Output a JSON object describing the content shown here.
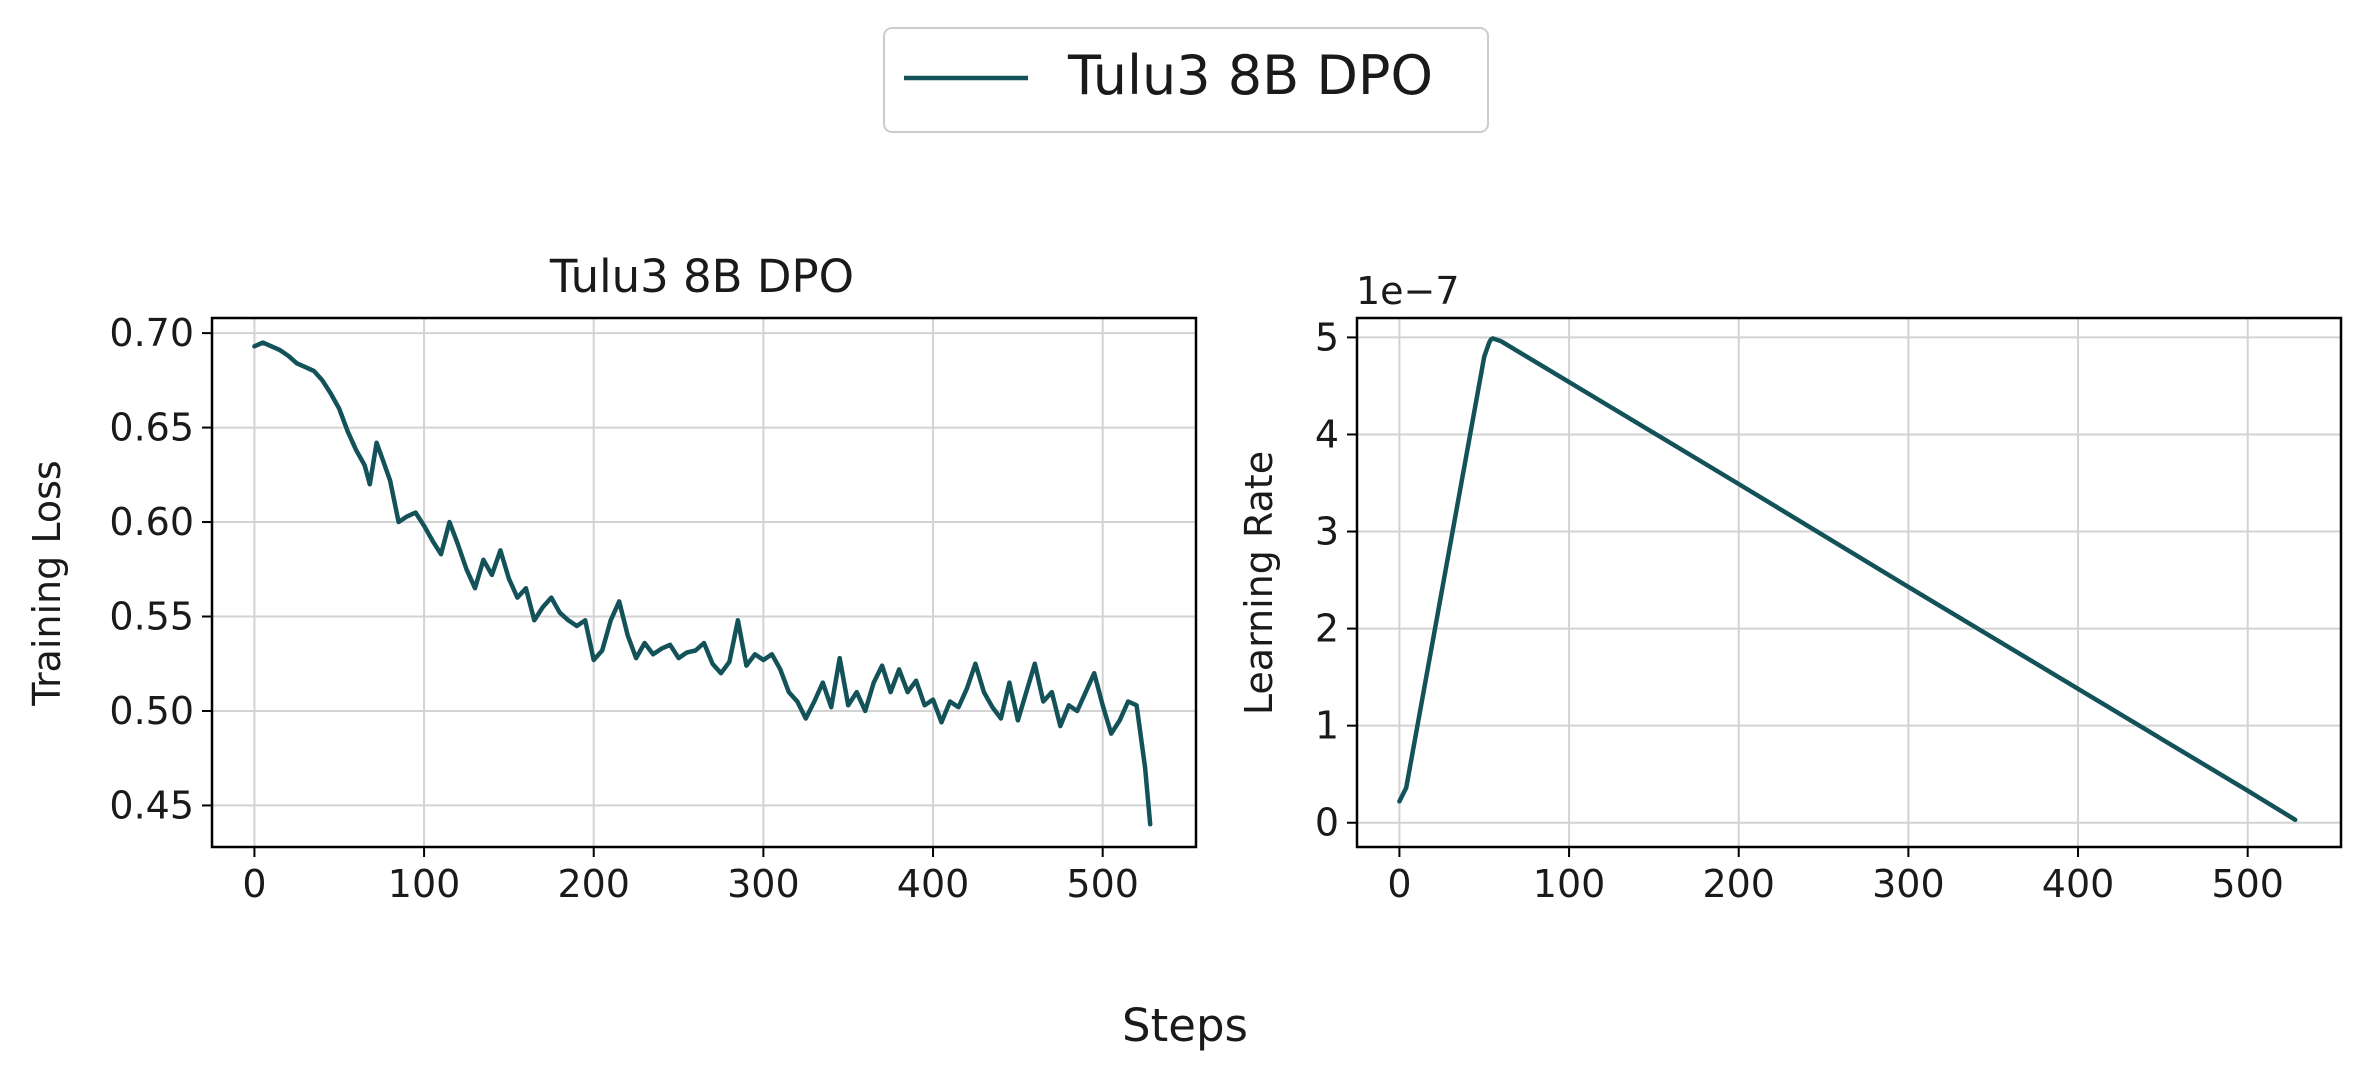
{
  "legend": {
    "label": "Tulu3 8B DPO",
    "color": "#14525a",
    "placement": "top-center"
  },
  "figure_xlabel": "Steps",
  "chart_data": [
    {
      "type": "line",
      "title": "Tulu3 8B DPO",
      "xlabel": "",
      "ylabel": "Training Loss",
      "xlim": [
        -25,
        555
      ],
      "ylim": [
        0.428,
        0.708
      ],
      "xticks": [
        0,
        100,
        200,
        300,
        400,
        500
      ],
      "yticks": [
        0.45,
        0.5,
        0.55,
        0.6,
        0.65,
        0.7
      ],
      "ytick_labels": [
        "0.45",
        "0.50",
        "0.55",
        "0.60",
        "0.65",
        "0.70"
      ],
      "grid": true,
      "series": [
        {
          "name": "Tulu3 8B DPO",
          "color": "#14525a",
          "x": [
            0,
            5,
            10,
            15,
            20,
            25,
            30,
            35,
            40,
            45,
            50,
            55,
            60,
            65,
            68,
            72,
            76,
            80,
            85,
            90,
            95,
            100,
            105,
            110,
            115,
            120,
            125,
            130,
            135,
            140,
            145,
            150,
            155,
            160,
            165,
            170,
            175,
            180,
            185,
            190,
            195,
            200,
            205,
            210,
            215,
            220,
            225,
            230,
            235,
            240,
            245,
            250,
            255,
            260,
            265,
            270,
            275,
            280,
            285,
            290,
            295,
            300,
            305,
            310,
            315,
            320,
            325,
            330,
            335,
            340,
            345,
            350,
            355,
            360,
            365,
            370,
            375,
            380,
            385,
            390,
            395,
            400,
            405,
            410,
            415,
            420,
            425,
            430,
            435,
            440,
            445,
            450,
            455,
            460,
            465,
            470,
            475,
            480,
            485,
            490,
            495,
            500,
            505,
            510,
            515,
            520,
            525,
            528
          ],
          "y": [
            0.693,
            0.695,
            0.693,
            0.691,
            0.688,
            0.684,
            0.682,
            0.68,
            0.675,
            0.668,
            0.66,
            0.648,
            0.638,
            0.63,
            0.62,
            0.642,
            0.632,
            0.622,
            0.6,
            0.603,
            0.605,
            0.598,
            0.59,
            0.583,
            0.6,
            0.588,
            0.575,
            0.565,
            0.58,
            0.572,
            0.585,
            0.57,
            0.56,
            0.565,
            0.548,
            0.555,
            0.56,
            0.552,
            0.548,
            0.545,
            0.548,
            0.527,
            0.532,
            0.548,
            0.558,
            0.54,
            0.528,
            0.536,
            0.53,
            0.533,
            0.535,
            0.528,
            0.531,
            0.532,
            0.536,
            0.525,
            0.52,
            0.526,
            0.548,
            0.524,
            0.53,
            0.527,
            0.53,
            0.522,
            0.51,
            0.505,
            0.496,
            0.505,
            0.515,
            0.502,
            0.528,
            0.503,
            0.51,
            0.5,
            0.515,
            0.524,
            0.51,
            0.522,
            0.51,
            0.516,
            0.503,
            0.506,
            0.494,
            0.505,
            0.502,
            0.512,
            0.525,
            0.51,
            0.502,
            0.496,
            0.515,
            0.495,
            0.51,
            0.525,
            0.505,
            0.51,
            0.492,
            0.503,
            0.5,
            0.51,
            0.52,
            0.503,
            0.488,
            0.495,
            0.505,
            0.503,
            0.47,
            0.44
          ]
        }
      ]
    },
    {
      "type": "line",
      "title": "",
      "xlabel": "",
      "ylabel": "Learning Rate",
      "scale_label": "1e−7",
      "xlim": [
        -25,
        555
      ],
      "ylim": [
        -0.25,
        5.2
      ],
      "xticks": [
        0,
        100,
        200,
        300,
        400,
        500
      ],
      "yticks": [
        0,
        1,
        2,
        3,
        4,
        5
      ],
      "ytick_labels": [
        "0",
        "1",
        "2",
        "3",
        "4",
        "5"
      ],
      "grid": true,
      "series": [
        {
          "name": "Tulu3 8B DPO",
          "color": "#14525a",
          "x": [
            0,
            4,
            50,
            53,
            54,
            55,
            60,
            100,
            200,
            300,
            400,
            500,
            528
          ],
          "y": [
            0.22,
            0.36,
            4.8,
            4.95,
            4.98,
            4.99,
            4.96,
            4.54,
            3.49,
            2.43,
            1.38,
            0.33,
            0.03
          ]
        }
      ]
    }
  ]
}
